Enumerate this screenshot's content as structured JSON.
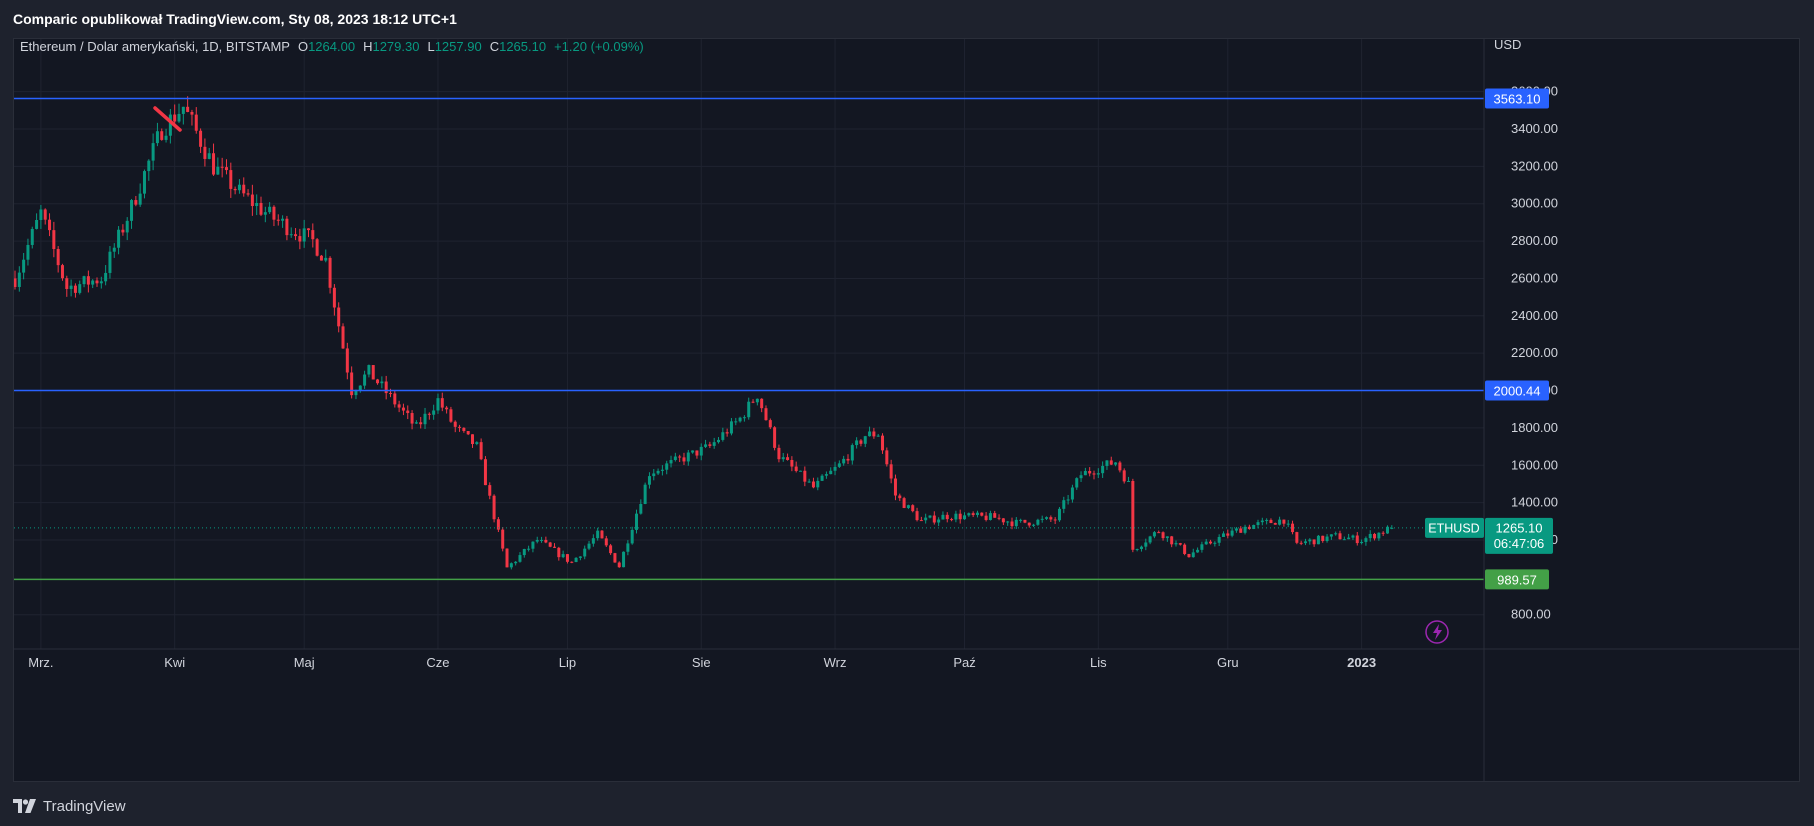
{
  "header": {
    "published_line": "Comparic opublikował TradingView.com, Sty 08, 2023 18:12 UTC+1"
  },
  "legend": {
    "symbol_desc": "Ethereum / Dolar amerykański, 1D, BITSTAMP",
    "o_label": "O",
    "o_value": "1264.00",
    "h_label": "H",
    "h_value": "1279.30",
    "l_label": "L",
    "l_value": "1257.90",
    "c_label": "C",
    "c_value": "1265.10",
    "change": "+1.20 (+0.09%)"
  },
  "axis": {
    "currency": "USD",
    "price_ticks": [
      "3600.00",
      "3400.00",
      "3200.00",
      "3000.00",
      "2800.00",
      "2600.00",
      "2400.00",
      "2200.00",
      "2000.00",
      "1800.00",
      "1600.00",
      "1400.00",
      "1200.00",
      "800.00"
    ],
    "month_labels": [
      "Mrz.",
      "Kwi",
      "Maj",
      "Cze",
      "Lip",
      "Sie",
      "Wrz",
      "Paź",
      "Lis",
      "Gru",
      "2023"
    ]
  },
  "levels": [
    {
      "label": "3563.10",
      "value": 3563.1,
      "color": "#2962ff"
    },
    {
      "label": "2000.44",
      "value": 2000.44,
      "color": "#2962ff"
    },
    {
      "label": "989.57",
      "value": 989.57,
      "color": "#43a047"
    }
  ],
  "last_price": {
    "symbol": "ETHUSD",
    "price": "1265.10",
    "countdown": "06:47:06",
    "color": "#089981"
  },
  "colors": {
    "up": "#089981",
    "down": "#f23645",
    "background": "#131722",
    "grid": "#1f2330"
  },
  "footer": {
    "brand": "TradingView"
  },
  "chart_data": {
    "type": "candlestick",
    "title": "Ethereum / Dolar amerykański, 1D, BITSTAMP",
    "ylabel": "USD",
    "ylim": [
      650,
      3650
    ],
    "grid": true,
    "x_range": [
      "2022-02-23",
      "2023-01-08"
    ],
    "x_tick_labels": [
      "Mrz.",
      "Kwi",
      "Maj",
      "Cze",
      "Lip",
      "Sie",
      "Wrz",
      "Paź",
      "Lis",
      "Gru",
      "2023"
    ],
    "anchor_closes": [
      {
        "date": "2022-02-23",
        "close": 2600
      },
      {
        "date": "2022-03-01",
        "close": 2950
      },
      {
        "date": "2022-03-07",
        "close": 2550
      },
      {
        "date": "2022-03-15",
        "close": 2600
      },
      {
        "date": "2022-03-22",
        "close": 2980
      },
      {
        "date": "2022-03-29",
        "close": 3400
      },
      {
        "date": "2022-04-03",
        "close": 3520
      },
      {
        "date": "2022-04-10",
        "close": 3200
      },
      {
        "date": "2022-04-16",
        "close": 3060
      },
      {
        "date": "2022-04-24",
        "close": 2920
      },
      {
        "date": "2022-05-03",
        "close": 2800
      },
      {
        "date": "2022-05-06",
        "close": 2700
      },
      {
        "date": "2022-05-12",
        "close": 2000
      },
      {
        "date": "2022-05-16",
        "close": 2100
      },
      {
        "date": "2022-05-27",
        "close": 1800
      },
      {
        "date": "2022-06-01",
        "close": 1950
      },
      {
        "date": "2022-06-05",
        "close": 1800
      },
      {
        "date": "2022-06-10",
        "close": 1700
      },
      {
        "date": "2022-06-17",
        "close": 1050
      },
      {
        "date": "2022-06-24",
        "close": 1200
      },
      {
        "date": "2022-07-02",
        "close": 1080
      },
      {
        "date": "2022-07-08",
        "close": 1230
      },
      {
        "date": "2022-07-13",
        "close": 1060
      },
      {
        "date": "2022-07-20",
        "close": 1560
      },
      {
        "date": "2022-07-27",
        "close": 1630
      },
      {
        "date": "2022-08-03",
        "close": 1700
      },
      {
        "date": "2022-08-10",
        "close": 1850
      },
      {
        "date": "2022-08-14",
        "close": 1980
      },
      {
        "date": "2022-08-19",
        "close": 1650
      },
      {
        "date": "2022-08-27",
        "close": 1480
      },
      {
        "date": "2022-09-02",
        "close": 1600
      },
      {
        "date": "2022-09-08",
        "close": 1760
      },
      {
        "date": "2022-09-11",
        "close": 1770
      },
      {
        "date": "2022-09-15",
        "close": 1440
      },
      {
        "date": "2022-09-21",
        "close": 1300
      },
      {
        "date": "2022-09-27",
        "close": 1330
      },
      {
        "date": "2022-10-08",
        "close": 1320
      },
      {
        "date": "2022-10-13",
        "close": 1290
      },
      {
        "date": "2022-10-22",
        "close": 1310
      },
      {
        "date": "2022-10-28",
        "close": 1550
      },
      {
        "date": "2022-11-05",
        "close": 1620
      },
      {
        "date": "2022-11-08",
        "close": 1500
      },
      {
        "date": "2022-11-09",
        "close": 1150
      },
      {
        "date": "2022-11-15",
        "close": 1250
      },
      {
        "date": "2022-11-22",
        "close": 1120
      },
      {
        "date": "2022-11-28",
        "close": 1200
      },
      {
        "date": "2022-12-05",
        "close": 1270
      },
      {
        "date": "2022-12-14",
        "close": 1310
      },
      {
        "date": "2022-12-17",
        "close": 1180
      },
      {
        "date": "2022-12-26",
        "close": 1220
      },
      {
        "date": "2023-01-01",
        "close": 1200
      },
      {
        "date": "2023-01-08",
        "close": 1265
      }
    ],
    "last_candle": {
      "date": "2023-01-08",
      "open": 1264.0,
      "high": 1279.3,
      "low": 1257.9,
      "close": 1265.1
    }
  }
}
